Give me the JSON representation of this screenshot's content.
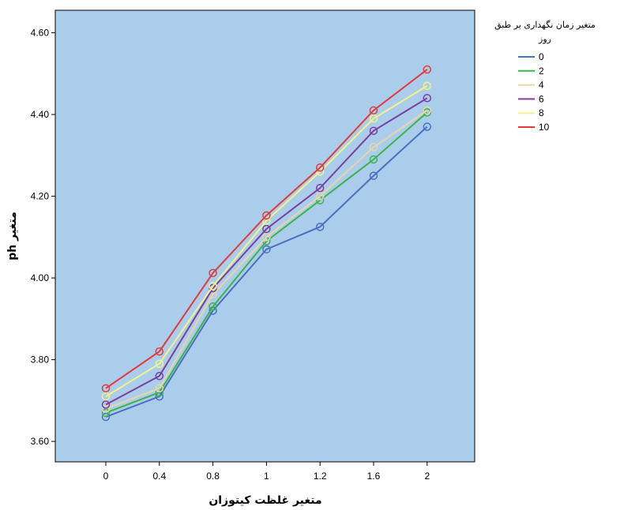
{
  "chart_data": {
    "type": "line",
    "title": "",
    "xlabel": "متغیر غلظت کیتوزان",
    "ylabel": "متغیر ph",
    "categories": [
      "0",
      "0.4",
      "0.8",
      "1",
      "1.2",
      "1.6",
      "2"
    ],
    "yticks": [
      "3.60",
      "3.80",
      "4.00",
      "4.20",
      "4.40",
      "4.60"
    ],
    "ylim": [
      3.55,
      4.655
    ],
    "grid": false,
    "background_color": "#abcdec",
    "legend": {
      "title_lines": [
        "متغیر زمان نگهداری بر طبق",
        "روز"
      ],
      "placement": "right"
    },
    "series": [
      {
        "name": "0",
        "color": "#4a6fc0",
        "values": [
          3.66,
          3.71,
          3.92,
          4.07,
          4.125,
          4.25,
          4.37
        ]
      },
      {
        "name": "2",
        "color": "#3cb44b",
        "values": [
          3.67,
          3.72,
          3.93,
          4.09,
          4.19,
          4.29,
          4.405
        ]
      },
      {
        "name": "4",
        "color": "#e6d6a8",
        "values": [
          3.68,
          3.73,
          3.96,
          4.1,
          4.2,
          4.32,
          4.41
        ]
      },
      {
        "name": "6",
        "color": "#7c3e9e",
        "values": [
          3.69,
          3.76,
          3.975,
          4.12,
          4.22,
          4.36,
          4.44
        ]
      },
      {
        "name": "8",
        "color": "#f2f28a",
        "values": [
          3.71,
          3.79,
          3.98,
          4.14,
          4.26,
          4.39,
          4.47
        ]
      },
      {
        "name": "10",
        "color": "#e3393c",
        "values": [
          3.73,
          3.82,
          4.012,
          4.153,
          4.27,
          4.41,
          4.51
        ]
      }
    ]
  }
}
